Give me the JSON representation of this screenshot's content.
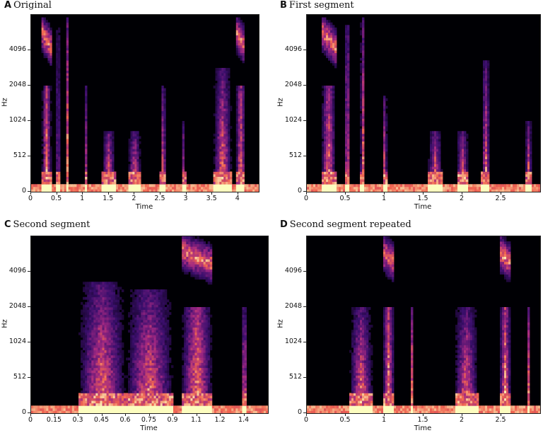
{
  "chart_data": [
    {
      "type": "heatmap",
      "panel_letter": "A",
      "title": "Original",
      "xlabel": "Time",
      "ylabel": "Hz",
      "yticks": [
        "0",
        "512",
        "1024",
        "2048",
        "4096"
      ],
      "ytick_fracs": [
        0.0,
        0.2,
        0.4,
        0.6,
        0.8
      ],
      "xticks": [
        "0",
        "0.5",
        "1",
        "1.5",
        "2",
        "2.5",
        "3",
        "3.5",
        "4"
      ],
      "xlim": [
        0,
        4.4
      ],
      "xtick_values": [
        0,
        0.5,
        1,
        1.5,
        2,
        2.5,
        3,
        3.5,
        4
      ],
      "colormap": "magma",
      "bursts": [
        {
          "t": 0.3,
          "w": 0.18,
          "top": 0.98,
          "slope": -0.5
        },
        {
          "t": 0.52,
          "w": 0.06,
          "top": 0.95,
          "slope": 0.0
        },
        {
          "t": 0.7,
          "w": 0.06,
          "top": 0.98,
          "slope": 0.0
        },
        {
          "t": 1.05,
          "w": 0.06,
          "top": 0.6,
          "slope": 0.0
        },
        {
          "t": 1.5,
          "w": 0.25,
          "top": 0.35,
          "slope": 0.0
        },
        {
          "t": 2.0,
          "w": 0.25,
          "top": 0.35,
          "slope": 0.0
        },
        {
          "t": 2.55,
          "w": 0.1,
          "top": 0.6,
          "slope": 0.0
        },
        {
          "t": 2.95,
          "w": 0.06,
          "top": 0.4,
          "slope": 0.0
        },
        {
          "t": 3.7,
          "w": 0.35,
          "top": 0.7,
          "slope": 0.0
        },
        {
          "t": 4.05,
          "w": 0.18,
          "top": 0.98,
          "slope": -0.5
        }
      ]
    },
    {
      "type": "heatmap",
      "panel_letter": "B",
      "title": "First segment",
      "xlabel": "Time",
      "ylabel": "Hz",
      "yticks": [
        "0",
        "512",
        "1024",
        "2048",
        "4096"
      ],
      "ytick_fracs": [
        0.0,
        0.2,
        0.4,
        0.6,
        0.8
      ],
      "xticks": [
        "0",
        "0.5",
        "1",
        "1.5",
        "2",
        "2.5"
      ],
      "xlim": [
        0,
        3.0
      ],
      "xtick_values": [
        0,
        0.5,
        1,
        1.5,
        2,
        2.5
      ],
      "colormap": "magma",
      "bursts": [
        {
          "t": 0.28,
          "w": 0.18,
          "top": 0.98,
          "slope": -0.5
        },
        {
          "t": 0.52,
          "w": 0.07,
          "top": 0.95,
          "slope": 0.0
        },
        {
          "t": 0.72,
          "w": 0.06,
          "top": 0.98,
          "slope": 0.0
        },
        {
          "t": 1.0,
          "w": 0.06,
          "top": 0.55,
          "slope": 0.0
        },
        {
          "t": 1.65,
          "w": 0.18,
          "top": 0.35,
          "slope": 0.0
        },
        {
          "t": 2.0,
          "w": 0.15,
          "top": 0.35,
          "slope": 0.0
        },
        {
          "t": 2.3,
          "w": 0.1,
          "top": 0.75,
          "slope": 0.0
        },
        {
          "t": 2.85,
          "w": 0.08,
          "top": 0.4,
          "slope": 0.0
        }
      ]
    },
    {
      "type": "heatmap",
      "panel_letter": "C",
      "title": "Second segment",
      "xlabel": "Time",
      "ylabel": "Hz",
      "yticks": [
        "0",
        "512",
        "1024",
        "2048",
        "4096"
      ],
      "ytick_fracs": [
        0.0,
        0.2,
        0.4,
        0.6,
        0.8
      ],
      "xticks": [
        "0",
        "0.15",
        "0.3",
        "0.45",
        "0.6",
        "0.75",
        "0.9",
        "1.1",
        "1.2",
        "1.4"
      ],
      "xlim": [
        0,
        1.5
      ],
      "xtick_values": [
        0,
        0.15,
        0.3,
        0.45,
        0.6,
        0.75,
        0.9,
        1.05,
        1.2,
        1.35
      ],
      "colormap": "magma",
      "bursts": [
        {
          "t": 0.45,
          "w": 0.3,
          "top": 0.75,
          "slope": 0.0
        },
        {
          "t": 0.75,
          "w": 0.3,
          "top": 0.7,
          "slope": 0.0
        },
        {
          "t": 1.05,
          "w": 0.2,
          "top": 1.0,
          "slope": -0.4
        },
        {
          "t": 1.35,
          "w": 0.04,
          "top": 0.6,
          "slope": 0.0
        }
      ]
    },
    {
      "type": "heatmap",
      "panel_letter": "D",
      "title": "Second segment repeated",
      "xlabel": "Time",
      "ylabel": "Hz",
      "yticks": [
        "0",
        "512",
        "1024",
        "2048",
        "4096"
      ],
      "ytick_fracs": [
        0.0,
        0.2,
        0.4,
        0.6,
        0.8
      ],
      "xticks": [
        "0",
        "0.5",
        "1",
        "1.5",
        "2",
        "2.5"
      ],
      "xlim": [
        0,
        3.0
      ],
      "xtick_values": [
        0,
        0.5,
        1,
        1.5,
        2,
        2.5
      ],
      "colormap": "magma",
      "bursts": [
        {
          "t": 0.7,
          "w": 0.3,
          "top": 0.6,
          "slope": 0.0
        },
        {
          "t": 1.05,
          "w": 0.15,
          "top": 1.0,
          "slope": -0.4
        },
        {
          "t": 1.35,
          "w": 0.05,
          "top": 0.6,
          "slope": 0.0
        },
        {
          "t": 2.05,
          "w": 0.3,
          "top": 0.6,
          "slope": 0.0
        },
        {
          "t": 2.55,
          "w": 0.15,
          "top": 1.0,
          "slope": -0.4
        },
        {
          "t": 2.85,
          "w": 0.05,
          "top": 0.6,
          "slope": 0.0
        }
      ]
    }
  ]
}
